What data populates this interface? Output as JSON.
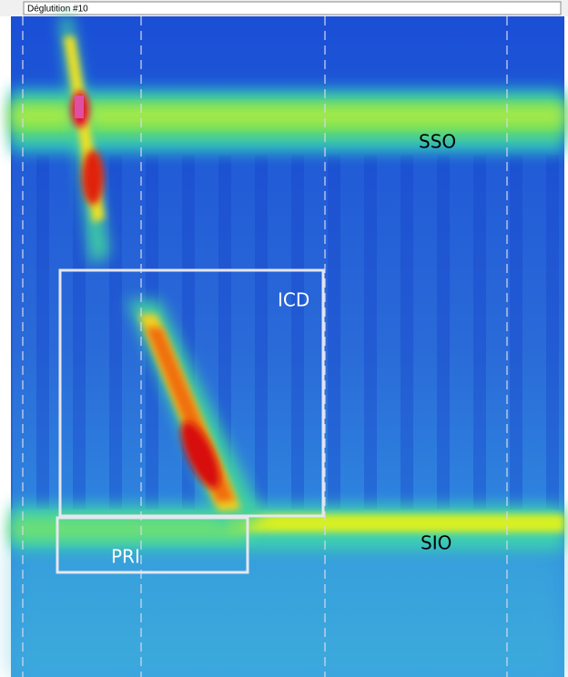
{
  "header": {
    "title": "Déglutition #10"
  },
  "regions": [
    {
      "label": "SSO"
    },
    {
      "label": "ICD"
    },
    {
      "label": "PRI"
    },
    {
      "label": "SIO"
    }
  ]
}
